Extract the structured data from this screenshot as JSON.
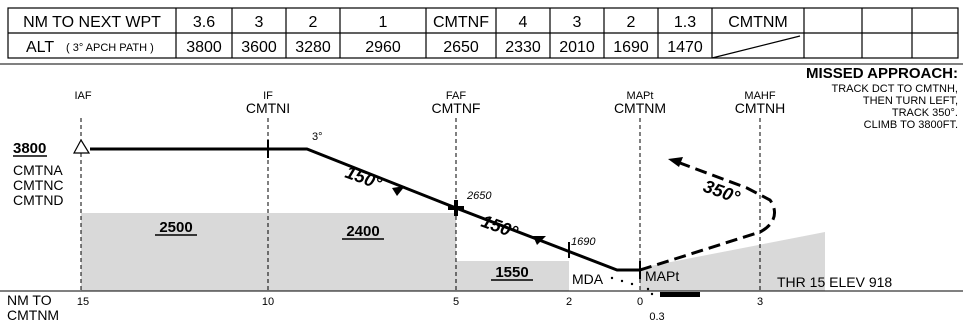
{
  "table": {
    "row1_label": "NM TO NEXT WPT",
    "row1_values": [
      "3.6",
      "3",
      "2",
      "1",
      "CMTNF",
      "4",
      "3",
      "2",
      "1.3",
      "CMTNM",
      "",
      "",
      ""
    ],
    "row2_label": "ALT",
    "row2_sub": "( 3° APCH PATH )",
    "row2_values": [
      "3800",
      "3600",
      "3280",
      "2960",
      "2650",
      "2330",
      "2010",
      "1690",
      "1470",
      "",
      "",
      "",
      ""
    ]
  },
  "fixes": {
    "iaf": {
      "role": "IAF",
      "name": ""
    },
    "if": {
      "role": "IF",
      "name": "CMTNI"
    },
    "faf": {
      "role": "FAF",
      "name": "CMTNF"
    },
    "mapt": {
      "role": "MAPt",
      "name": "CMTNM"
    },
    "mahf": {
      "role": "MAHF",
      "name": "CMTNH"
    }
  },
  "iaf_alt": "3800",
  "iaf_names": [
    "CMTNA",
    "CMTNC",
    "CMTND"
  ],
  "tracks": {
    "seg1": "150°",
    "seg2": "150°",
    "missed": "350°",
    "turn": "3°"
  },
  "alt_labels": {
    "faf": "2650",
    "stepdown": "1690"
  },
  "msa": {
    "a": "2500",
    "b": "2400",
    "c": "1550"
  },
  "mda_label": "MDA",
  "mapt_label": "MAPt",
  "thr_label": "THR 15 ELEV 918",
  "missed": {
    "title": "MISSED APPROACH:",
    "lines": [
      "TRACK DCT TO CMTNH,",
      "THEN TURN LEFT,",
      "TRACK 350°.",
      "CLIMB TO 3800FT."
    ]
  },
  "axis": {
    "label_line1": "NM TO",
    "label_line2": "CMTNM",
    "ticks": [
      "15",
      "10",
      "5",
      "2",
      "0",
      "3"
    ],
    "sub_tick": "0.3"
  },
  "colors": {
    "terrain": "#d9d9d9",
    "ink": "#000000",
    "background": "#ffffff"
  }
}
